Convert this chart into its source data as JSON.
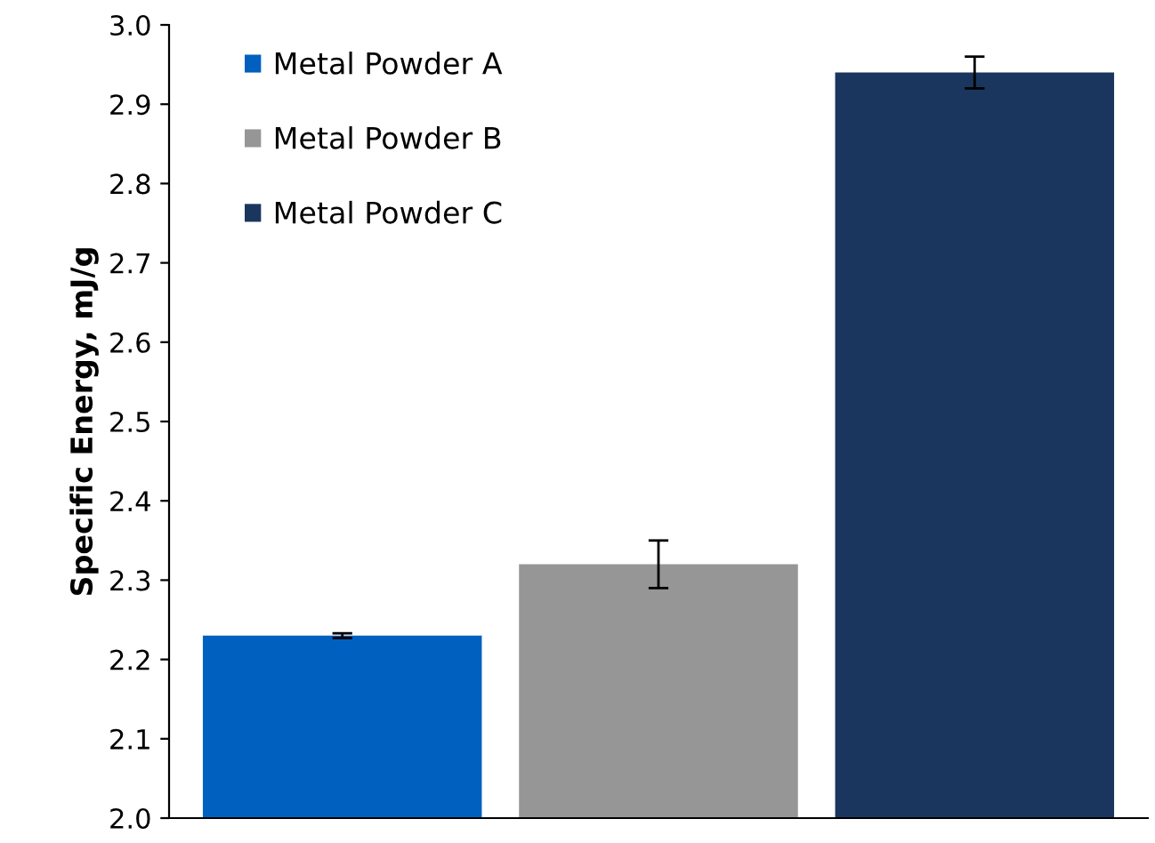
{
  "chart_data": {
    "type": "bar",
    "ylabel": "Specific Energy, mJ/g",
    "categories": [
      null
    ],
    "series": [
      {
        "name": "Metal Powder A",
        "color": "#0060c0",
        "values": [
          2.23
        ],
        "errors": [
          0.003
        ]
      },
      {
        "name": "Metal Powder B",
        "color": "#969696",
        "values": [
          2.32
        ],
        "errors": [
          0.03
        ]
      },
      {
        "name": "Metal Powder C",
        "color": "#1a365e",
        "values": [
          2.94
        ],
        "errors": [
          0.02
        ]
      }
    ],
    "ylim": [
      2.0,
      3.0
    ],
    "yticks": [
      {
        "value": 2,
        "label": "2.0"
      },
      2.1,
      2.2,
      2.3,
      2.4,
      2.5,
      2.6,
      2.7,
      2.8,
      2.9,
      {
        "value": 3,
        "label": "3.0"
      }
    ],
    "grid": false,
    "legend": "top left"
  }
}
